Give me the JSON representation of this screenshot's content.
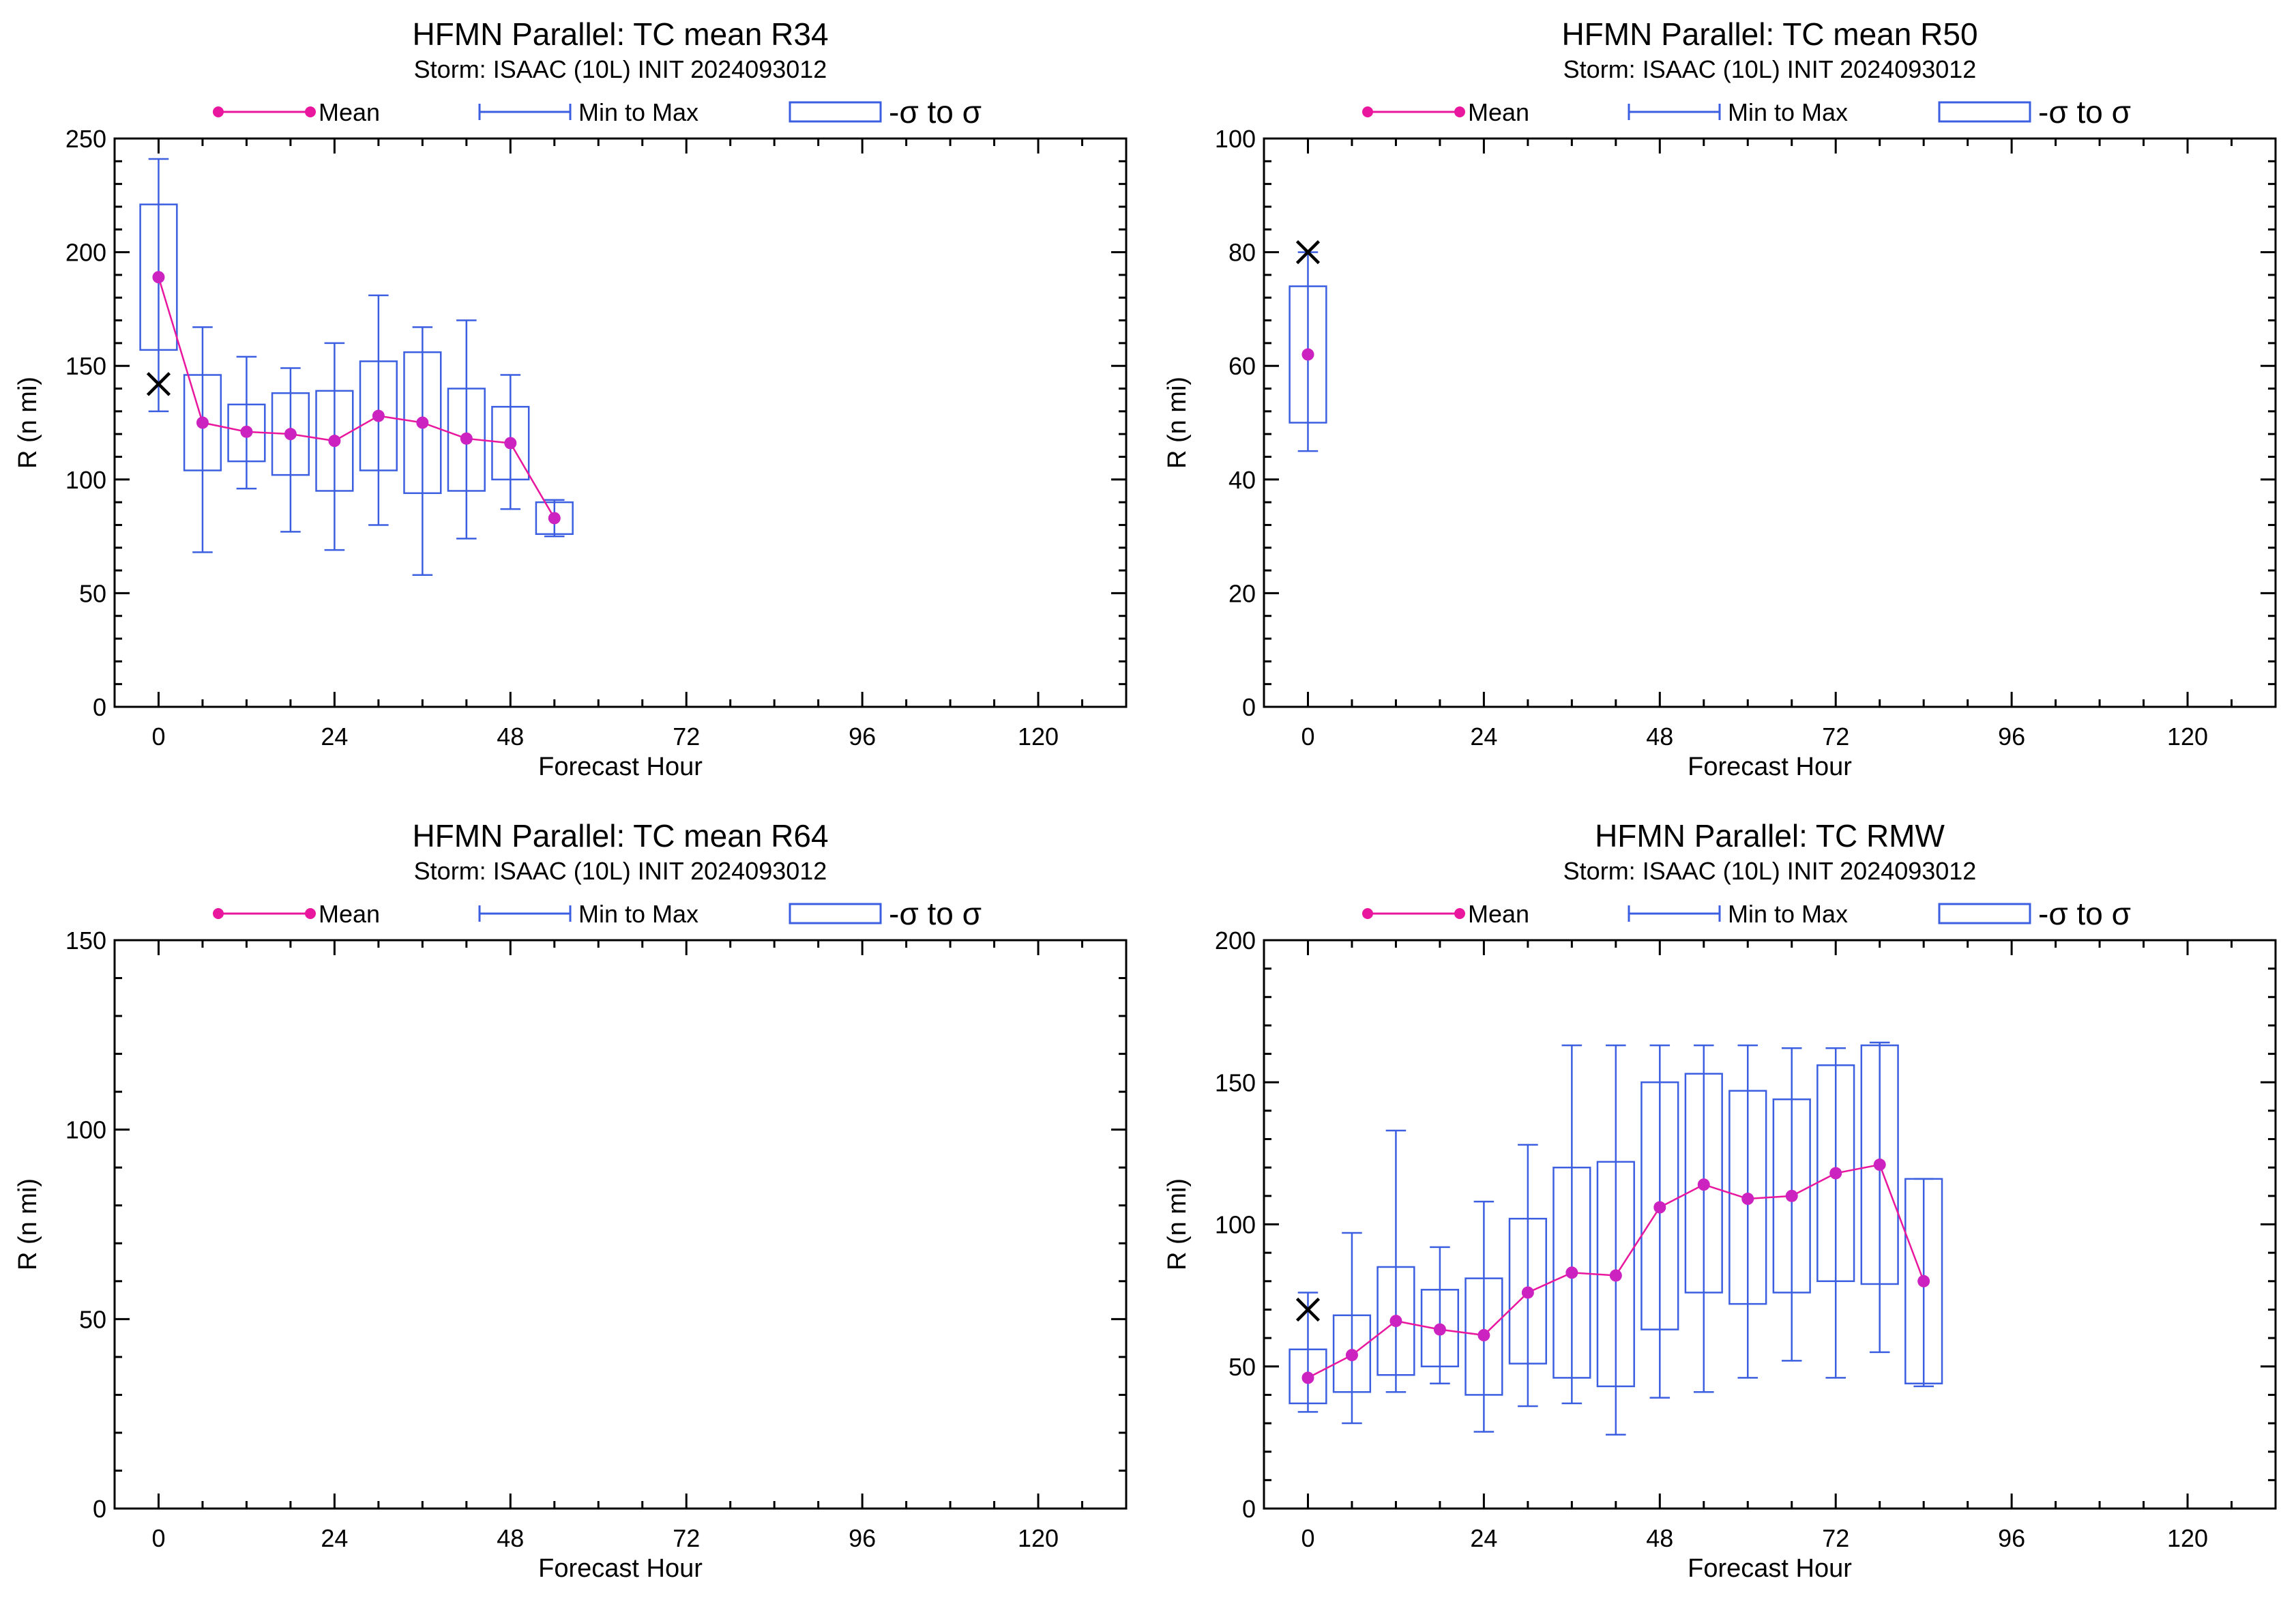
{
  "colors": {
    "mean": "#e8179e",
    "spread": "#3b5fe0",
    "axis": "#000000",
    "observed": "#000000"
  },
  "legend": {
    "mean": "Mean",
    "minmax": "Min to Max",
    "sigma": "-σ to σ"
  },
  "chart_data": [
    {
      "id": "r34",
      "type": "box-line",
      "title": "HFMN Parallel: TC mean R34",
      "subtitle": "Storm: ISAAC (10L) INIT 2024093012",
      "xlabel": "Forecast Hour",
      "ylabel": "R (n mi)",
      "xlim": [
        -6,
        132
      ],
      "ylim": [
        0,
        250
      ],
      "xticks": [
        0,
        24,
        48,
        72,
        96,
        120
      ],
      "yticks": [
        0,
        50,
        100,
        150,
        200,
        250
      ],
      "x": [
        0,
        6,
        12,
        18,
        24,
        30,
        36,
        42,
        48,
        54
      ],
      "mean": [
        189,
        125,
        121,
        120,
        117,
        128,
        125,
        118,
        116,
        83
      ],
      "min": [
        130,
        68,
        96,
        77,
        69,
        80,
        58,
        74,
        87,
        75
      ],
      "max": [
        241,
        167,
        154,
        149,
        160,
        181,
        167,
        170,
        146,
        91
      ],
      "sigma_low": [
        157,
        104,
        108,
        102,
        95,
        104,
        94,
        95,
        100,
        76
      ],
      "sigma_high": [
        221,
        146,
        133,
        138,
        139,
        152,
        156,
        140,
        132,
        90
      ],
      "observed": {
        "x": 0,
        "y": 142
      }
    },
    {
      "id": "r50",
      "type": "box-line",
      "title": "HFMN Parallel: TC mean R50",
      "subtitle": "Storm: ISAAC (10L) INIT 2024093012",
      "xlabel": "Forecast Hour",
      "ylabel": "R (n mi)",
      "xlim": [
        -6,
        132
      ],
      "ylim": [
        0,
        100
      ],
      "xticks": [
        0,
        24,
        48,
        72,
        96,
        120
      ],
      "yticks": [
        0,
        20,
        40,
        60,
        80,
        100
      ],
      "x": [
        0
      ],
      "mean": [
        62
      ],
      "min": [
        45
      ],
      "max": [
        80
      ],
      "sigma_low": [
        50
      ],
      "sigma_high": [
        74
      ],
      "observed": {
        "x": 0,
        "y": 80
      }
    },
    {
      "id": "r64",
      "type": "box-line",
      "title": "HFMN Parallel: TC mean R64",
      "subtitle": "Storm: ISAAC (10L) INIT 2024093012",
      "xlabel": "Forecast Hour",
      "ylabel": "R (n mi)",
      "xlim": [
        -6,
        132
      ],
      "ylim": [
        0,
        150
      ],
      "xticks": [
        0,
        24,
        48,
        72,
        96,
        120
      ],
      "yticks": [
        0,
        50,
        100,
        150
      ],
      "x": [],
      "mean": [],
      "min": [],
      "max": [],
      "sigma_low": [],
      "sigma_high": [],
      "observed": null
    },
    {
      "id": "rmw",
      "type": "box-line",
      "title": "HFMN Parallel: TC RMW",
      "subtitle": "Storm: ISAAC (10L) INIT 2024093012",
      "xlabel": "Forecast Hour",
      "ylabel": "R (n mi)",
      "xlim": [
        -6,
        132
      ],
      "ylim": [
        0,
        200
      ],
      "xticks": [
        0,
        24,
        48,
        72,
        96,
        120
      ],
      "yticks": [
        0,
        50,
        100,
        150,
        200
      ],
      "x": [
        0,
        6,
        12,
        18,
        24,
        30,
        36,
        42,
        48,
        54,
        60,
        66,
        72,
        78,
        84
      ],
      "mean": [
        46,
        54,
        66,
        63,
        61,
        76,
        83,
        82,
        106,
        114,
        109,
        110,
        118,
        121,
        80
      ],
      "min": [
        34,
        30,
        41,
        44,
        27,
        36,
        37,
        26,
        39,
        41,
        46,
        52,
        46,
        55,
        43
      ],
      "max": [
        76,
        97,
        133,
        92,
        108,
        128,
        163,
        163,
        163,
        163,
        163,
        162,
        162,
        164,
        116
      ],
      "sigma_low": [
        37,
        41,
        47,
        50,
        40,
        51,
        46,
        43,
        63,
        76,
        72,
        76,
        80,
        79,
        44
      ],
      "sigma_high": [
        56,
        68,
        85,
        77,
        81,
        102,
        120,
        122,
        150,
        153,
        147,
        144,
        156,
        163,
        116
      ],
      "observed": {
        "x": 0,
        "y": 70
      }
    }
  ]
}
